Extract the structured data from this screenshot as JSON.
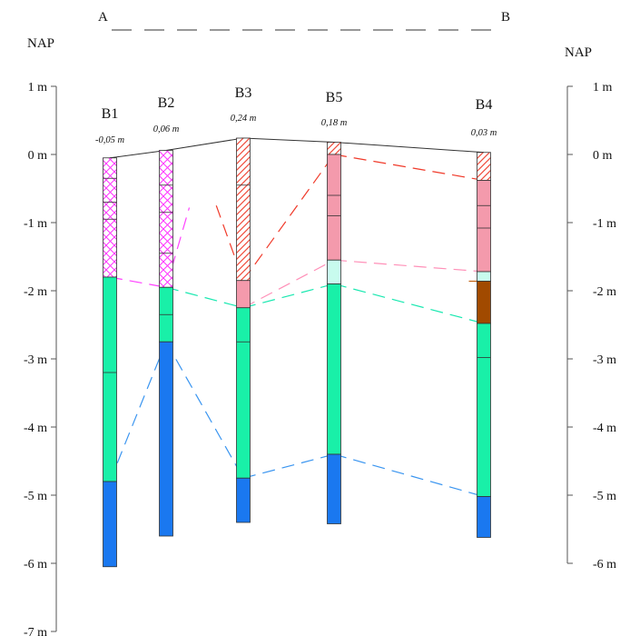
{
  "section": {
    "start_label": "A",
    "end_label": "B",
    "left_datum": "NAP",
    "right_datum": "NAP"
  },
  "colors": {
    "fill": "#ff66ff",
    "peat": "#f49aac",
    "sand": "#19f0a8",
    "light_sand": "#c8fbee",
    "clay": "#a14a00",
    "gravel": "#1a78f0",
    "hatch_red": "#f04a3a",
    "line_magenta": "#ff40ff",
    "line_red": "#f03a2a",
    "line_pink": "#ff90b8",
    "line_green": "#19e8b0",
    "line_blue": "#3a95f0",
    "line_brown": "#c06010"
  },
  "left_axis": {
    "ticks": [
      {
        "v": 1,
        "label": "1 m"
      },
      {
        "v": 0,
        "label": "0 m"
      },
      {
        "v": -1,
        "label": "-1 m"
      },
      {
        "v": -2,
        "label": "-2 m"
      },
      {
        "v": -3,
        "label": "-3 m"
      },
      {
        "v": -4,
        "label": "-4 m"
      },
      {
        "v": -5,
        "label": "-5 m"
      },
      {
        "v": -6,
        "label": "-6 m"
      },
      {
        "v": -7,
        "label": "-7 m"
      }
    ]
  },
  "right_axis": {
    "ticks": [
      {
        "v": 1,
        "label": "1 m"
      },
      {
        "v": 0,
        "label": "0 m"
      },
      {
        "v": -1,
        "label": "-1 m"
      },
      {
        "v": -2,
        "label": "-2 m"
      },
      {
        "v": -3,
        "label": "-3 m"
      },
      {
        "v": -4,
        "label": "-4 m"
      },
      {
        "v": -5,
        "label": "-5 m"
      },
      {
        "v": -6,
        "label": "-6 m"
      }
    ]
  },
  "boreholes": [
    {
      "name": "B1",
      "surface": "-0,05 m",
      "surface_value": -0.05,
      "layers": [
        {
          "top": -0.05,
          "bottom": -1.8,
          "fill": "fill",
          "dividers": [
            -0.35,
            -0.7,
            -0.95
          ]
        },
        {
          "top": -1.8,
          "bottom": -4.8,
          "fill": "sand",
          "dividers": [
            -3.2
          ]
        },
        {
          "top": -4.8,
          "bottom": -6.05,
          "fill": "gravel",
          "dividers": []
        }
      ]
    },
    {
      "name": "B2",
      "surface": "0,06 m",
      "surface_value": 0.06,
      "layers": [
        {
          "top": 0.06,
          "bottom": -1.95,
          "fill": "fill",
          "dividers": [
            -0.45,
            -0.85,
            -1.45
          ]
        },
        {
          "top": -1.95,
          "bottom": -2.75,
          "fill": "sand",
          "dividers": [
            -2.35
          ]
        },
        {
          "top": -2.75,
          "bottom": -5.6,
          "fill": "gravel",
          "dividers": []
        }
      ]
    },
    {
      "name": "B3",
      "surface": "0,24 m",
      "surface_value": 0.24,
      "layers": [
        {
          "top": 0.24,
          "bottom": -1.85,
          "fill": "hatch",
          "dividers": [
            -0.45
          ]
        },
        {
          "top": -1.85,
          "bottom": -2.25,
          "fill": "peat",
          "dividers": []
        },
        {
          "top": -2.25,
          "bottom": -4.75,
          "fill": "sand",
          "dividers": [
            -2.75
          ]
        },
        {
          "top": -4.75,
          "bottom": -5.4,
          "fill": "gravel",
          "dividers": []
        }
      ]
    },
    {
      "name": "B5",
      "surface": "0,18 m",
      "surface_value": 0.18,
      "layers": [
        {
          "top": 0.18,
          "bottom": 0.0,
          "fill": "hatch",
          "dividers": []
        },
        {
          "top": 0.0,
          "bottom": -1.55,
          "fill": "peat",
          "dividers": [
            -0.6,
            -0.9
          ]
        },
        {
          "top": -1.55,
          "bottom": -1.9,
          "fill": "light_sand",
          "dividers": []
        },
        {
          "top": -1.9,
          "bottom": -4.4,
          "fill": "sand",
          "dividers": []
        },
        {
          "top": -4.4,
          "bottom": -5.42,
          "fill": "gravel",
          "dividers": []
        }
      ]
    },
    {
      "name": "B4",
      "surface": "0,03 m",
      "surface_value": 0.03,
      "layers": [
        {
          "top": 0.03,
          "bottom": -0.38,
          "fill": "hatch",
          "dividers": []
        },
        {
          "top": -0.38,
          "bottom": -1.72,
          "fill": "peat",
          "dividers": [
            -0.75,
            -1.08
          ]
        },
        {
          "top": -1.72,
          "bottom": -1.86,
          "fill": "light_sand",
          "dividers": []
        },
        {
          "top": -1.86,
          "bottom": -2.48,
          "fill": "clay",
          "dividers": []
        },
        {
          "top": -2.48,
          "bottom": -5.02,
          "fill": "sand",
          "dividers": [
            -2.98
          ]
        },
        {
          "top": -5.02,
          "bottom": -5.62,
          "fill": "gravel",
          "dividers": []
        }
      ]
    }
  ],
  "correlations": [
    {
      "color": "line_magenta",
      "points": [
        [
          0,
          -1.8
        ],
        [
          1,
          -1.95
        ]
      ]
    },
    {
      "color": "line_magenta",
      "points": [
        [
          1,
          -1.95
        ],
        [
          1.3,
          -0.78
        ]
      ]
    },
    {
      "color": "line_red",
      "points": [
        [
          1.65,
          -0.75
        ],
        [
          2,
          -1.85
        ]
      ]
    },
    {
      "color": "line_red",
      "points": [
        [
          2,
          -1.85
        ],
        [
          3,
          0.0
        ]
      ]
    },
    {
      "color": "line_red",
      "points": [
        [
          3,
          0.0
        ],
        [
          4,
          -0.38
        ]
      ]
    },
    {
      "color": "line_pink",
      "points": [
        [
          2,
          -2.25
        ],
        [
          3,
          -1.55
        ]
      ]
    },
    {
      "color": "line_pink",
      "points": [
        [
          3,
          -1.55
        ],
        [
          4,
          -1.72
        ]
      ]
    },
    {
      "color": "line_green",
      "points": [
        [
          1,
          -1.95
        ],
        [
          2,
          -2.25
        ]
      ]
    },
    {
      "color": "line_green",
      "points": [
        [
          2,
          -2.25
        ],
        [
          3,
          -1.9
        ]
      ]
    },
    {
      "color": "line_green",
      "points": [
        [
          3,
          -1.9
        ],
        [
          4,
          -2.48
        ]
      ]
    },
    {
      "color": "line_brown",
      "points": [
        [
          3.9,
          -1.86
        ],
        [
          4,
          -1.86
        ]
      ]
    },
    {
      "color": "line_blue",
      "points": [
        [
          0,
          -4.8
        ],
        [
          1,
          -2.75
        ]
      ]
    },
    {
      "color": "line_blue",
      "points": [
        [
          1,
          -2.75
        ],
        [
          2,
          -4.75
        ]
      ]
    },
    {
      "color": "line_blue",
      "points": [
        [
          2,
          -4.75
        ],
        [
          3,
          -4.4
        ]
      ]
    },
    {
      "color": "line_blue",
      "points": [
        [
          3,
          -4.4
        ],
        [
          4,
          -5.02
        ]
      ]
    }
  ]
}
